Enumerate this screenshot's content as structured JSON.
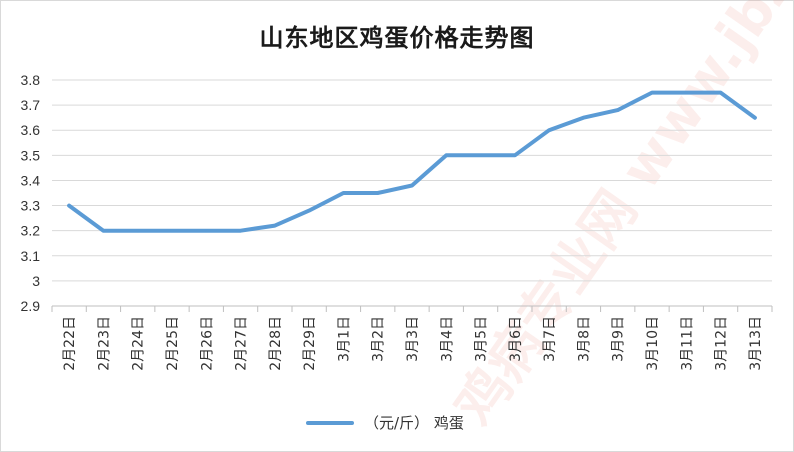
{
  "chart_data": {
    "type": "line",
    "title": "山东地区鸡蛋价格走势图",
    "xlabel": "",
    "ylabel": "",
    "ylim": [
      2.9,
      3.8
    ],
    "yticks": [
      "2.9",
      "3",
      "3.1",
      "3.2",
      "3.3",
      "3.4",
      "3.5",
      "3.6",
      "3.7",
      "3.8"
    ],
    "categories": [
      "2月22日",
      "2月23日",
      "2月24日",
      "2月25日",
      "2月26日",
      "2月27日",
      "2月28日",
      "2月29日",
      "3月1日",
      "3月2日",
      "3月3日",
      "3月4日",
      "3月5日",
      "3月6日",
      "3月7日",
      "3月8日",
      "3月9日",
      "3月10日",
      "3月11日",
      "3月12日",
      "3月13日"
    ],
    "series": [
      {
        "name": "（元/斤） 鸡蛋",
        "color": "#5b9bd5",
        "values": [
          3.3,
          3.2,
          3.2,
          3.2,
          3.2,
          3.2,
          3.22,
          3.28,
          3.35,
          3.35,
          3.38,
          3.5,
          3.5,
          3.5,
          3.6,
          3.65,
          3.68,
          3.75,
          3.75,
          3.75,
          3.65
        ]
      }
    ],
    "grid": true,
    "legend": "bottom"
  },
  "watermark": "鸡病专业网 www.jbzyw.com"
}
